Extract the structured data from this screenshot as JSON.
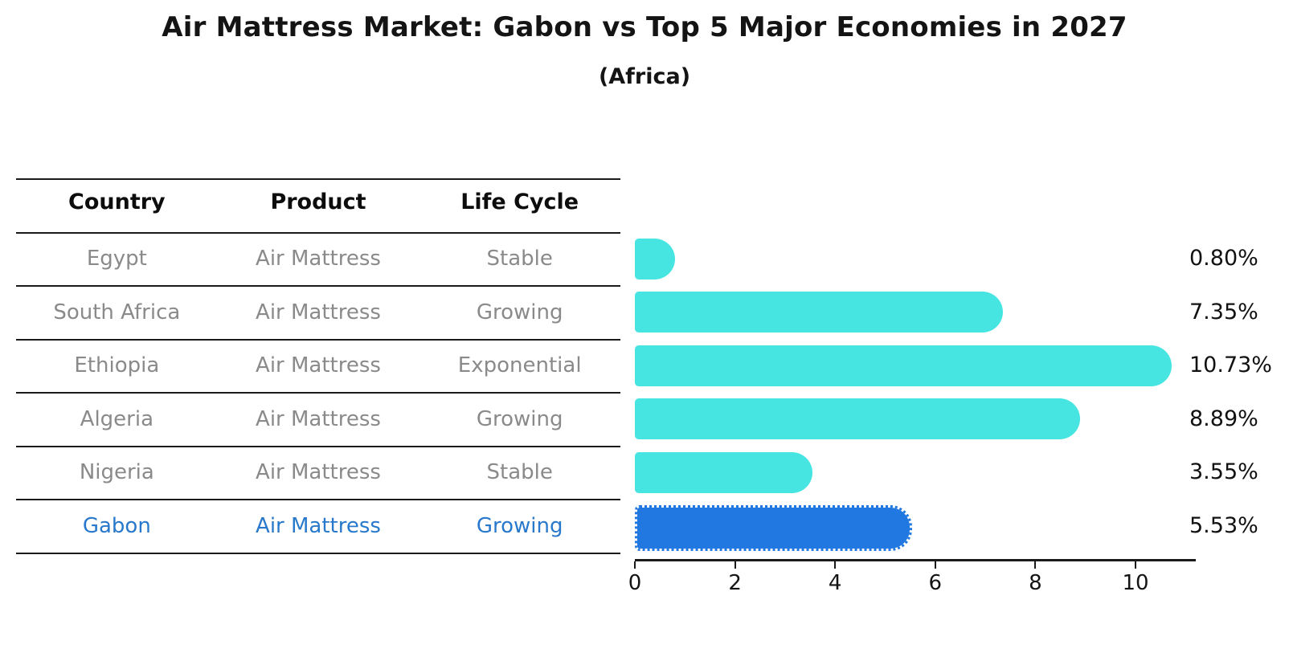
{
  "title": "Air Mattress Market: Gabon vs Top 5 Major Economies in 2027",
  "subtitle": "(Africa)",
  "table": {
    "headers": [
      "Country",
      "Product",
      "Life Cycle"
    ],
    "rows": [
      {
        "country": "Egypt",
        "product": "Air Mattress",
        "life_cycle": "Stable",
        "highlighted": false
      },
      {
        "country": "South Africa",
        "product": "Air Mattress",
        "life_cycle": "Growing",
        "highlighted": false
      },
      {
        "country": "Ethiopia",
        "product": "Air Mattress",
        "life_cycle": "Exponential",
        "highlighted": false
      },
      {
        "country": "Algeria",
        "product": "Air Mattress",
        "life_cycle": "Growing",
        "highlighted": false
      },
      {
        "country": "Nigeria",
        "product": "Air Mattress",
        "life_cycle": "Stable",
        "highlighted": false
      },
      {
        "country": "Gabon",
        "product": "Air Mattress",
        "life_cycle": "Growing",
        "highlighted": true
      }
    ]
  },
  "chart_data": {
    "type": "bar",
    "orientation": "horizontal",
    "title": "Air Mattress Market: Gabon vs Top 5 Major Economies in 2027",
    "subtitle": "(Africa)",
    "categories": [
      "Egypt",
      "South Africa",
      "Ethiopia",
      "Algeria",
      "Nigeria",
      "Gabon"
    ],
    "values": [
      0.8,
      7.35,
      10.73,
      8.89,
      3.55,
      5.53
    ],
    "value_labels": [
      "0.80%",
      "7.35%",
      "10.73%",
      "8.89%",
      "3.55%",
      "5.53%"
    ],
    "x_ticks": [
      "0",
      "2",
      "4",
      "6",
      "8",
      "10"
    ],
    "x_tick_values": [
      0,
      2,
      4,
      6,
      8,
      10
    ],
    "xlim": [
      0,
      11.2
    ],
    "grid": false,
    "legend": false,
    "bar_color": "#46e5e2",
    "highlight_bar_color": "#2078e0",
    "highlight_index": 5,
    "highlight_text_color": "#2878cb",
    "axis_color": "#1a1a1a",
    "label_color": "#111111"
  }
}
